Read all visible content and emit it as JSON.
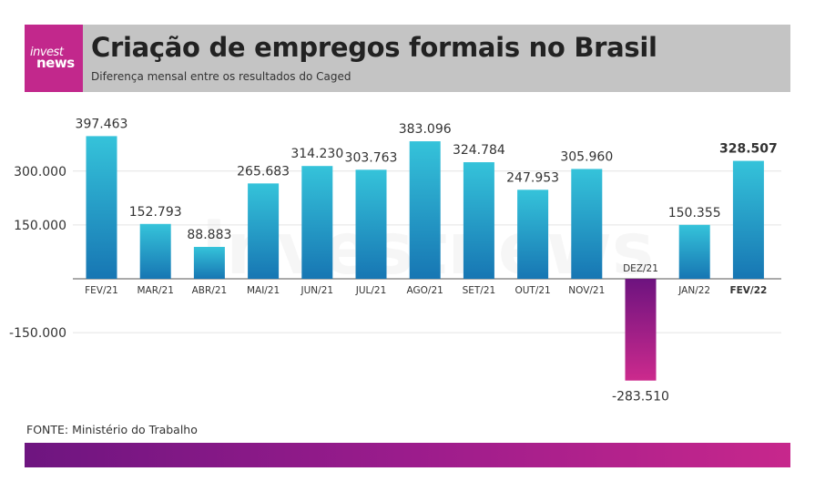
{
  "header": {
    "logo_top": "invest",
    "logo_bottom": "news",
    "title": "Criação de empregos formais no Brasil",
    "subtitle": "Diferença mensal entre os resultados do Caged"
  },
  "watermark": "investnews",
  "source": "FONTE: Ministério do Trabalho",
  "colors": {
    "header_bg": "#c4c4c4",
    "brand": "#c2288c",
    "bar_positive_top": "#35c3da",
    "bar_positive_bottom": "#1776b3",
    "bar_negative_top": "#6d137f",
    "bar_negative_bottom": "#cc2a8d"
  },
  "chart_data": {
    "type": "bar",
    "title": "Criação de empregos formais no Brasil",
    "subtitle": "Diferença mensal entre os resultados do Caged",
    "categories": [
      "FEV/21",
      "MAR/21",
      "ABR/21",
      "MAI/21",
      "JUN/21",
      "JUL/21",
      "AGO/21",
      "SET/21",
      "OUT/21",
      "NOV/21",
      "DEZ/21",
      "JAN/22",
      "FEV/22"
    ],
    "values": [
      397463,
      152793,
      88883,
      265683,
      314230,
      303763,
      383096,
      324784,
      247953,
      305960,
      -283510,
      150355,
      328507
    ],
    "value_labels": [
      "397.463",
      "152.793",
      "88.883",
      "265.683",
      "314.230",
      "303.763",
      "383.096",
      "324.784",
      "247.953",
      "305.960",
      "-283.510",
      "150.355",
      "328.507"
    ],
    "highlight_index": 12,
    "y_ticks": [
      300000,
      150000,
      -150000
    ],
    "y_tick_labels": [
      "300.000",
      "150.000",
      "-150.000"
    ],
    "ylim": [
      -300000,
      420000
    ],
    "xlabel": "",
    "ylabel": "",
    "grid": true
  }
}
